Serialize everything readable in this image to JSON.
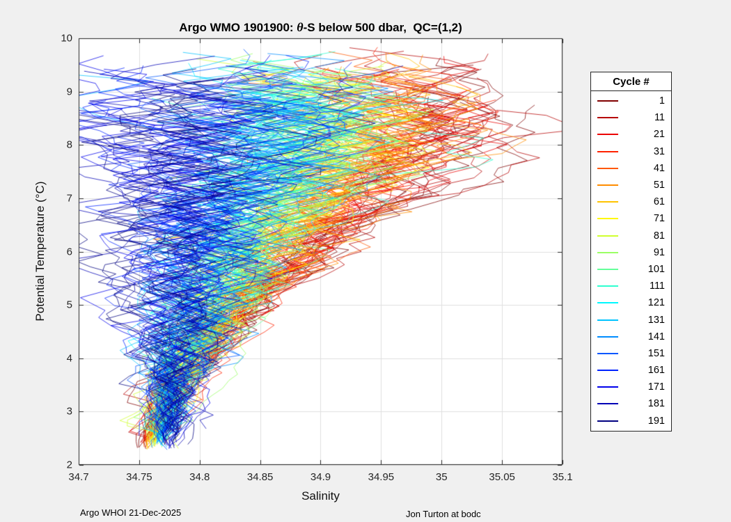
{
  "figure": {
    "background": "#f0f0f0",
    "footer_left": "Argo WHOI 21-Dec-2025",
    "footer_right": "Jon Turton at bodc"
  },
  "chart_data": {
    "type": "line",
    "title": "Argo WMO 1901900: θ-S below 500 dbar,  QC=(1,2)",
    "title_parts": {
      "prefix": "Argo WMO 1901900: ",
      "theta": "θ",
      "suffix": "-S below 500 dbar,  QC=(1,2)"
    },
    "xlabel": "Salinity",
    "ylabel": "Potential Temperature (°C)",
    "xlim": [
      34.7,
      35.1
    ],
    "ylim": [
      2,
      10
    ],
    "xticks": [
      34.7,
      34.75,
      34.8,
      34.85,
      34.9,
      34.95,
      35,
      35.05,
      35.1
    ],
    "xtick_labels": [
      "34.7",
      "34.75",
      "34.8",
      "34.85",
      "34.9",
      "34.95",
      "35",
      "35.05",
      "35.1"
    ],
    "yticks": [
      2,
      3,
      4,
      5,
      6,
      7,
      8,
      9,
      10
    ],
    "ytick_labels": [
      "2",
      "3",
      "4",
      "5",
      "6",
      "7",
      "8",
      "9",
      "10"
    ],
    "grid": true,
    "legend_title": "Cycle #",
    "legend_position": "right",
    "profiles_per_series": 10,
    "backbone_t": [
      2.4,
      3.5,
      5.0,
      6.5,
      8.0,
      8.8,
      9.6
    ],
    "series": [
      {
        "label": "1",
        "color": "#800000",
        "backbone_s": [
          34.752,
          34.779,
          34.847,
          34.92,
          35.012,
          35.005,
          34.966
        ]
      },
      {
        "label": "11",
        "color": "#B60000",
        "backbone_s": [
          34.753,
          34.779,
          34.843,
          34.913,
          35.0,
          34.993,
          34.956
        ]
      },
      {
        "label": "21",
        "color": "#EB0000",
        "backbone_s": [
          34.755,
          34.779,
          34.841,
          34.906,
          34.989,
          34.983,
          34.948
        ]
      },
      {
        "label": "31",
        "color": "#FF2100",
        "backbone_s": [
          34.756,
          34.779,
          34.837,
          34.899,
          34.977,
          34.971,
          34.938
        ]
      },
      {
        "label": "41",
        "color": "#FF5800",
        "backbone_s": [
          34.757,
          34.779,
          34.833,
          34.891,
          34.965,
          34.959,
          34.929
        ]
      },
      {
        "label": "51",
        "color": "#FF8D00",
        "backbone_s": [
          34.759,
          34.779,
          34.83,
          34.885,
          34.953,
          34.949,
          34.92
        ]
      },
      {
        "label": "61",
        "color": "#FFC300",
        "backbone_s": [
          34.76,
          34.779,
          34.827,
          34.877,
          34.941,
          34.937,
          34.911
        ]
      },
      {
        "label": "71",
        "color": "#FFF800",
        "backbone_s": [
          34.761,
          34.779,
          34.823,
          34.87,
          34.929,
          34.926,
          34.901
        ]
      },
      {
        "label": "81",
        "color": "#D0FF2E",
        "backbone_s": [
          34.763,
          34.779,
          34.82,
          34.863,
          34.918,
          34.915,
          34.892
        ]
      },
      {
        "label": "91",
        "color": "#9AFF64",
        "backbone_s": [
          34.764,
          34.779,
          34.816,
          34.856,
          34.906,
          34.903,
          34.883
        ]
      },
      {
        "label": "101",
        "color": "#64FF9A",
        "backbone_s": [
          34.765,
          34.779,
          34.813,
          34.849,
          34.894,
          34.892,
          34.874
        ]
      },
      {
        "label": "111",
        "color": "#2EFFD0",
        "backbone_s": [
          34.766,
          34.779,
          34.809,
          34.842,
          34.882,
          34.88,
          34.865
        ]
      },
      {
        "label": "121",
        "color": "#00F8FF",
        "backbone_s": [
          34.768,
          34.779,
          34.806,
          34.835,
          34.871,
          34.869,
          34.855
        ]
      },
      {
        "label": "131",
        "color": "#00C3FF",
        "backbone_s": [
          34.769,
          34.779,
          34.802,
          34.828,
          34.859,
          34.858,
          34.846
        ]
      },
      {
        "label": "141",
        "color": "#008DFF",
        "backbone_s": [
          34.77,
          34.779,
          34.799,
          34.82,
          34.847,
          34.846,
          34.837
        ]
      },
      {
        "label": "151",
        "color": "#0057FF",
        "backbone_s": [
          34.772,
          34.779,
          34.796,
          34.814,
          34.835,
          34.835,
          34.828
        ]
      },
      {
        "label": "161",
        "color": "#0022FF",
        "backbone_s": [
          34.773,
          34.779,
          34.792,
          34.806,
          34.823,
          34.824,
          34.819
        ]
      },
      {
        "label": "171",
        "color": "#0000EB",
        "backbone_s": [
          34.774,
          34.779,
          34.789,
          34.799,
          34.811,
          34.812,
          34.809
        ]
      },
      {
        "label": "181",
        "color": "#0000B6",
        "backbone_s": [
          34.776,
          34.779,
          34.786,
          34.792,
          34.8,
          34.801,
          34.8
        ]
      },
      {
        "label": "191",
        "color": "#000080",
        "backbone_s": [
          34.777,
          34.779,
          34.782,
          34.785,
          34.788,
          34.79,
          34.791
        ]
      }
    ]
  }
}
